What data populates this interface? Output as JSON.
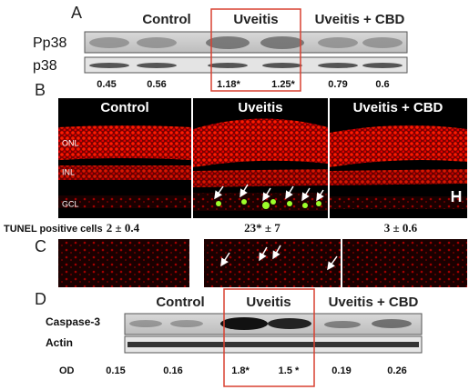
{
  "panel_a": {
    "label": "A",
    "groups": [
      "Control",
      "Uveitis",
      "Uveitis + CBD"
    ],
    "blots": [
      "Pp38",
      "p38"
    ],
    "values": [
      "0.45",
      "0.56",
      "1.18*",
      "1.25*",
      "0.79",
      "0.6"
    ]
  },
  "panel_b": {
    "label": "B",
    "images": [
      "Control",
      "Uveitis",
      "Uveitis + CBD"
    ],
    "layers": [
      "ONL",
      "INL",
      "GCL"
    ],
    "tunel_label": "TUNEL positive cells",
    "tunel_values": [
      "2 ± 0.4",
      "23* ± 7",
      "3 ± 0.6"
    ]
  },
  "panel_c": {
    "label": "C"
  },
  "panel_d": {
    "label": "D",
    "groups": [
      "Control",
      "Uveitis",
      "Uveitis + CBD"
    ],
    "blots": [
      "Caspase-3",
      "Actin"
    ],
    "row_label": "OD",
    "values": [
      "0.15",
      "0.16",
      "1.8*",
      "1.5 *",
      "0.19",
      "0.26"
    ]
  }
}
